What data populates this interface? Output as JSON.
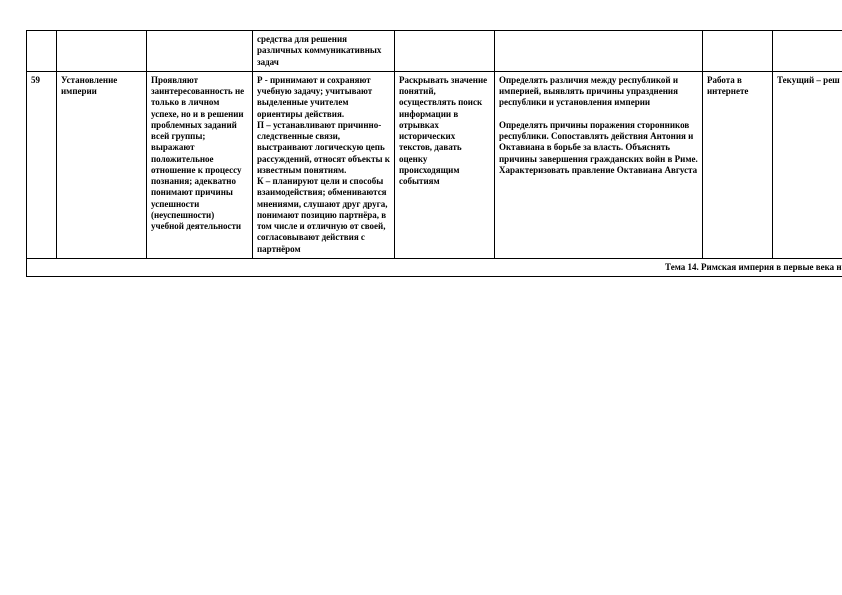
{
  "table": {
    "border_color": "#000000",
    "font_family": "Times New Roman",
    "font_size_pt": 7,
    "rows": {
      "prev": {
        "c1": "",
        "c2": "",
        "c3": "",
        "c4": "средства для решения различных коммуникативных задач",
        "c5": "",
        "c6": "",
        "c7": "",
        "c8": ""
      },
      "main": {
        "c1": "59",
        "c2": "Установление империи",
        "c3": "Проявляют заинтересованность не только в личном успехе, но и в решении проблемных заданий всей группы; выражают положительное отношение к процессу познания; адекватно понимают причины успешности (неуспешности) учебной деятельности",
        "c4": "Р -  принимают и сохраняют учебную задачу; учитывают выделенные учителем ориентиры действия.\nП – устанавливают причинно-следственные связи, выстраивают логическую цепь рассуждений, относят объекты к известным понятиям.\nК – планируют цели и способы взаимодействия; обмениваются мнениями, слушают друг друга, понимают позицию партнёра, в том числе и отличную от своей, согласовывают действия с партнёром",
        "c5": "Раскрывать значение понятий, осуществлять поиск информации в отрывках исторических текстов, давать оценку происходящим событиям",
        "c6": "Определять различия между республикой и империей, выявлять причины упразднения республики и установления империи\n\nОпределять причины поражения сторонников республики. Сопоставлять действия Антония и Октавиана в борьбе за власть. Объяснять причины завершения гражданских войн в Риме. Характеризовать правление Октавиана Августа",
        "c7": "Работа в интернете",
        "c8": "Текущий – реш"
      },
      "section": "Тема 14. Римская империя в первые века нашей эр"
    }
  }
}
